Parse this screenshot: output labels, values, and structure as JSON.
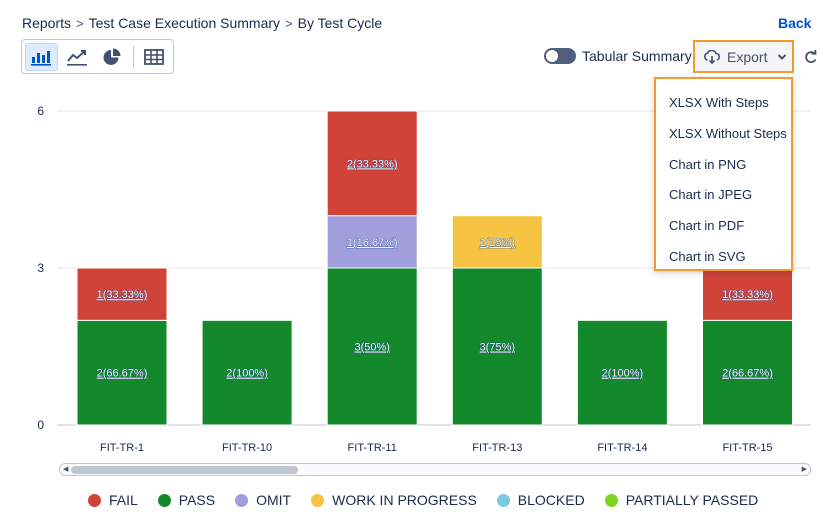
{
  "breadcrumb": {
    "items": [
      "Reports",
      "Test Case Execution Summary"
    ],
    "current": "By Test Cycle"
  },
  "back_label": "Back",
  "view_buttons": [
    "bar-chart-icon",
    "line-chart-icon",
    "pie-chart-icon",
    "table-icon"
  ],
  "toggle": {
    "label": "Tabular Summary"
  },
  "export": {
    "label": "Export",
    "menu": [
      "XLSX With Steps",
      "XLSX Without Steps",
      "Chart in PNG",
      "Chart in JPEG",
      "Chart in PDF",
      "Chart in SVG"
    ]
  },
  "colors": {
    "fail": "#d04437",
    "pass": "#14892c",
    "omit": "#a29ddb",
    "wip": "#f6c342",
    "blocked": "#7ec8e3",
    "partially_passed": "#7ed321",
    "accent": "#0052cc",
    "highlight": "#f6992c"
  },
  "chart_data": {
    "type": "bar",
    "stacked": true,
    "categories": [
      "FIT-TR-1",
      "FIT-TR-10",
      "FIT-TR-11",
      "FIT-TR-13",
      "FIT-TR-14",
      "FIT-TR-15"
    ],
    "series": [
      {
        "name": "PASS",
        "color": "#14892c",
        "values": [
          2,
          2,
          3,
          3,
          2,
          2
        ],
        "labels": [
          "2(66.67%)",
          "2(100%)",
          "3(50%)",
          "3(75%)",
          "2(100%)",
          "2(66.67%)"
        ]
      },
      {
        "name": "OMIT",
        "color": "#a29ddb",
        "values": [
          0,
          0,
          1,
          0,
          0,
          0
        ],
        "labels": [
          "",
          "",
          "1(16.67%)",
          "",
          "",
          ""
        ]
      },
      {
        "name": "WORK IN PROGRESS",
        "color": "#f6c342",
        "values": [
          0,
          0,
          0,
          1,
          0,
          0
        ],
        "labels": [
          "",
          "",
          "",
          "1(25%)",
          "",
          ""
        ]
      },
      {
        "name": "FAIL",
        "color": "#d04437",
        "values": [
          1,
          0,
          2,
          0,
          0,
          1
        ],
        "labels": [
          "1(33.33%)",
          "",
          "2(33.33%)",
          "",
          "",
          "1(33.33%)"
        ]
      }
    ],
    "yticks": [
      0,
      3,
      6
    ],
    "ylim": [
      0,
      6
    ],
    "legend": [
      {
        "name": "FAIL",
        "color": "#d04437"
      },
      {
        "name": "PASS",
        "color": "#14892c"
      },
      {
        "name": "OMIT",
        "color": "#a29ddb"
      },
      {
        "name": "WORK IN PROGRESS",
        "color": "#f6c342"
      },
      {
        "name": "BLOCKED",
        "color": "#7ec8e3"
      },
      {
        "name": "PARTIALLY PASSED",
        "color": "#7ed321"
      }
    ],
    "legend_position": "bottom"
  }
}
